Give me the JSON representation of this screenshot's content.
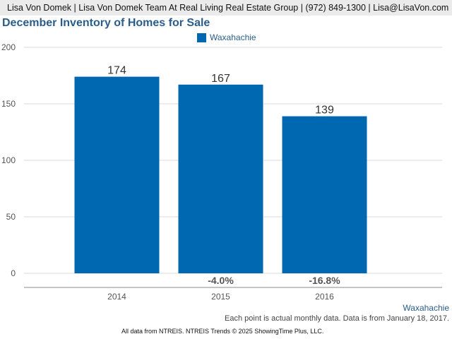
{
  "header": {
    "text": "Lisa Von Domek | Lisa Von Domek Team At Real Living Real Estate Group | (972) 849-1300 | Lisa@LisaVon.com"
  },
  "legend": {
    "label": "Waxahachie",
    "color": "#0067b1"
  },
  "source": {
    "link_text": "Waxahachie"
  },
  "footnote": "Each point is actual monthly data. Data is from January 18, 2017.",
  "footer": "All data from NTREIS. NTREIS Trends © 2025 ShowingTime Plus, LLC.",
  "chart_data": {
    "type": "bar",
    "title": "December Inventory of Homes for Sale",
    "xlabel": "",
    "ylabel": "",
    "categories": [
      "2014",
      "2015",
      "2016"
    ],
    "series": [
      {
        "name": "Waxahachie",
        "values": [
          174,
          167,
          139
        ],
        "color": "#0067b1"
      }
    ],
    "data_labels": [
      "174",
      "167",
      "139"
    ],
    "change_labels": [
      "",
      "-4.0%",
      "-16.8%"
    ],
    "ylim": [
      0,
      200
    ],
    "yticks": [
      0,
      50,
      100,
      150,
      200
    ],
    "grid": true,
    "legend_position": "top-center"
  }
}
